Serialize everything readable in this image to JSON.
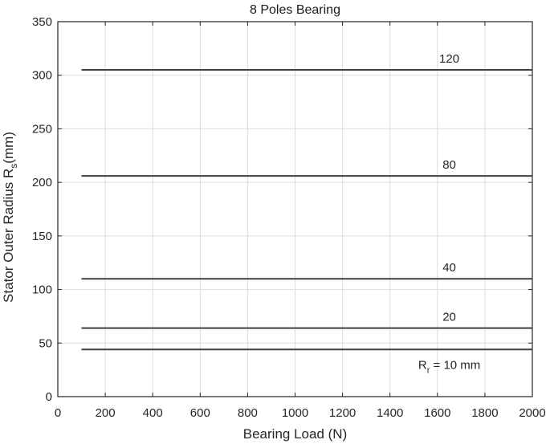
{
  "chart_data": {
    "type": "line",
    "title": "8 Poles Bearing",
    "xlabel": "Bearing Load (N)",
    "ylabel": "Stator Outer Radius",
    "ylabel_symbol": "R",
    "ylabel_subscript": "s",
    "ylabel_unit": "(mm)",
    "xlim": [
      0,
      2000
    ],
    "ylim": [
      0,
      350
    ],
    "xticks": [
      0,
      200,
      400,
      600,
      800,
      1000,
      1200,
      1400,
      1600,
      1800,
      2000
    ],
    "yticks": [
      0,
      50,
      100,
      150,
      200,
      250,
      300,
      350
    ],
    "grid": true,
    "series": [
      {
        "label": "120",
        "x": [
          100,
          2000
        ],
        "values": [
          305,
          305
        ]
      },
      {
        "label": "80",
        "x": [
          100,
          2000
        ],
        "values": [
          206,
          206
        ]
      },
      {
        "label": "40",
        "x": [
          100,
          2000
        ],
        "values": [
          110,
          110
        ]
      },
      {
        "label": "20",
        "x": [
          100,
          2000
        ],
        "values": [
          64,
          64
        ]
      },
      {
        "label": "R",
        "label_subscript": "r",
        "label_suffix": " = 10 mm",
        "x": [
          100,
          2000
        ],
        "values": [
          44,
          44
        ]
      }
    ]
  }
}
